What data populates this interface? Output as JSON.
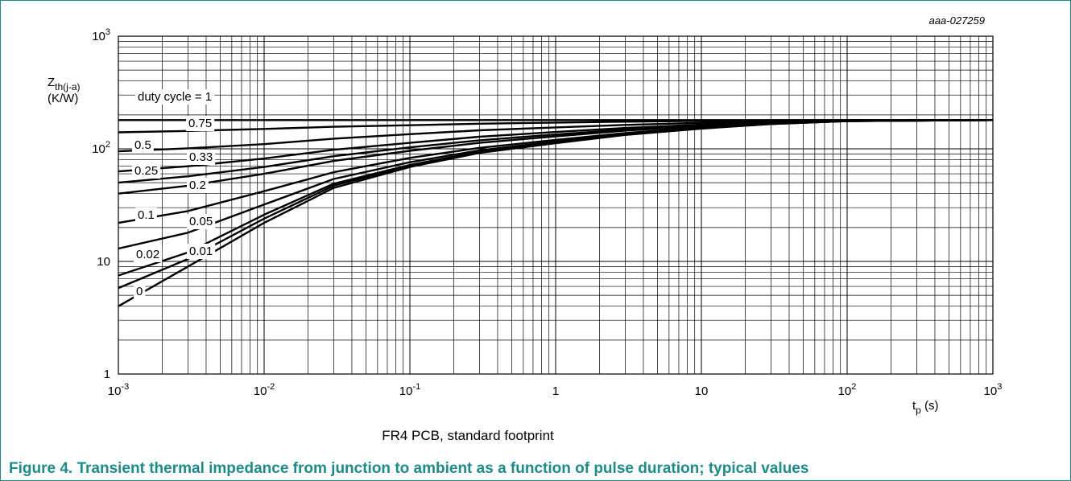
{
  "chart_data": {
    "type": "line",
    "xscale": "log",
    "yscale": "log",
    "xlim": [
      0.001,
      1000
    ],
    "ylim": [
      1,
      1000
    ],
    "grid": true,
    "code": "aaa-027259",
    "ylabel_main": "Z",
    "ylabel_sub": "th(j-a)",
    "yunit": "(K/W)",
    "xlabel_main": "t",
    "xlabel_sub": "p",
    "xunit": " (s)",
    "subtitle": "FR4 PCB, standard footprint",
    "x_ticks": [
      {
        "base": "10",
        "exp": "-3"
      },
      {
        "base": "10",
        "exp": "-2"
      },
      {
        "base": "10",
        "exp": "-1"
      },
      {
        "base": "1",
        "exp": ""
      },
      {
        "base": "10",
        "exp": ""
      },
      {
        "base": "10",
        "exp": "2"
      },
      {
        "base": "10",
        "exp": "3"
      }
    ],
    "y_ticks": [
      {
        "value": 1,
        "base": "1",
        "exp": ""
      },
      {
        "value": 10,
        "base": "10",
        "exp": ""
      },
      {
        "value": 100,
        "base": "10",
        "exp": "2"
      },
      {
        "value": 1000,
        "base": "10",
        "exp": "3"
      }
    ],
    "series": [
      {
        "name": "duty cycle = 1",
        "x": [
          0.001,
          1000
        ],
        "y": [
          180,
          180
        ]
      },
      {
        "name": "0.75",
        "x": [
          0.001,
          0.003,
          0.01,
          0.03,
          0.1,
          0.3,
          1,
          3,
          10,
          30,
          100,
          1000
        ],
        "y": [
          140,
          144,
          150,
          157,
          162,
          167,
          171,
          174,
          177,
          179,
          180,
          180
        ]
      },
      {
        "name": "0.5",
        "x": [
          0.001,
          0.003,
          0.01,
          0.03,
          0.1,
          0.3,
          1,
          3,
          10,
          30,
          100,
          1000
        ],
        "y": [
          95,
          101,
          110,
          123,
          135,
          146,
          155,
          163,
          170,
          176,
          179,
          180
        ]
      },
      {
        "name": "0.33",
        "x": [
          0.001,
          0.003,
          0.01,
          0.03,
          0.1,
          0.3,
          1,
          3,
          10,
          30,
          100,
          1000
        ],
        "y": [
          63,
          70,
          82,
          98,
          113,
          128,
          141,
          153,
          164,
          173,
          178,
          180
        ]
      },
      {
        "name": "0.25",
        "x": [
          0.001,
          0.003,
          0.01,
          0.03,
          0.1,
          0.3,
          1,
          3,
          10,
          30,
          100,
          1000
        ],
        "y": [
          50,
          57,
          69,
          86,
          103,
          119,
          134,
          148,
          161,
          171,
          178,
          180
        ]
      },
      {
        "name": "0.2",
        "x": [
          0.001,
          0.003,
          0.01,
          0.03,
          0.1,
          0.3,
          1,
          3,
          10,
          30,
          100,
          1000
        ],
        "y": [
          40,
          47,
          60,
          78,
          96,
          113,
          129,
          145,
          159,
          170,
          177,
          180
        ]
      },
      {
        "name": "0.1",
        "x": [
          0.001,
          0.003,
          0.01,
          0.03,
          0.1,
          0.3,
          1,
          3,
          10,
          30,
          100,
          1000
        ],
        "y": [
          22,
          28,
          42,
          62,
          83,
          102,
          120,
          138,
          155,
          168,
          177,
          180
        ]
      },
      {
        "name": "0.05",
        "x": [
          0.001,
          0.003,
          0.01,
          0.03,
          0.1,
          0.3,
          1,
          3,
          10,
          30,
          100,
          1000
        ],
        "y": [
          13,
          18,
          32,
          54,
          76,
          97,
          116,
          135,
          153,
          167,
          176,
          180
        ]
      },
      {
        "name": "0.02",
        "x": [
          0.001,
          0.003,
          0.01,
          0.03,
          0.1,
          0.3,
          1,
          3,
          10,
          30,
          100,
          1000
        ],
        "y": [
          7.5,
          12,
          26,
          49,
          72,
          94,
          114,
          134,
          152,
          167,
          176,
          180
        ]
      },
      {
        "name": "0.01",
        "x": [
          0.001,
          0.003,
          0.01,
          0.03,
          0.1,
          0.3,
          1,
          3,
          10,
          30,
          100,
          1000
        ],
        "y": [
          5.8,
          10.5,
          24,
          47,
          71,
          93,
          113,
          133,
          152,
          166,
          176,
          180
        ]
      },
      {
        "name": "0",
        "x": [
          0.001,
          0.003,
          0.01,
          0.03,
          0.1,
          0.3,
          1,
          3,
          10,
          30,
          100,
          1000
        ],
        "y": [
          4,
          9,
          22,
          45,
          69,
          92,
          112,
          133,
          151,
          166,
          176,
          180
        ]
      }
    ]
  },
  "figure_caption": "Figure 4. Transient thermal impedance from junction to ambient as a function of pulse duration; typical values"
}
